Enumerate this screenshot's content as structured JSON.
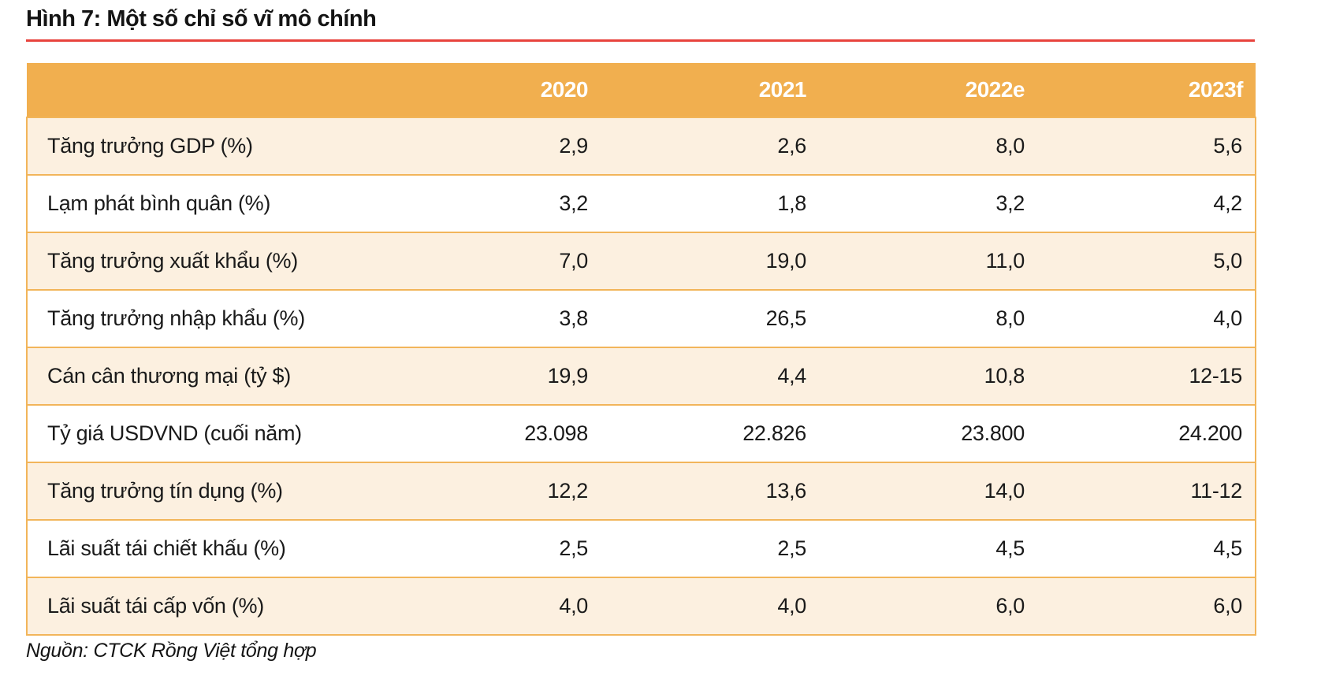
{
  "figure": {
    "title": "Hình 7: Một số chỉ số vĩ mô chính",
    "source_note": "Nguồn: CTCK Rồng Việt tổng hợp"
  },
  "colors": {
    "header_bg": "#F1AF4F",
    "row_stripe_bg": "#FCF0E0",
    "row_border": "#F2B55A",
    "title_rule_red": "#E8433D",
    "header_text": "#FFFFFF",
    "body_text": "#1A1A1A"
  },
  "table": {
    "columns": [
      "2020",
      "2021",
      "2022e",
      "2023f"
    ],
    "rows": [
      {
        "label": "Tăng trưởng GDP (%)",
        "values": [
          "2,9",
          "2,6",
          "8,0",
          "5,6"
        ]
      },
      {
        "label": "Lạm phát bình quân (%)",
        "values": [
          "3,2",
          "1,8",
          "3,2",
          "4,2"
        ]
      },
      {
        "label": "Tăng trưởng xuất khẩu (%)",
        "values": [
          "7,0",
          "19,0",
          "11,0",
          "5,0"
        ]
      },
      {
        "label": "Tăng trưởng nhập khẩu (%)",
        "values": [
          "3,8",
          "26,5",
          "8,0",
          "4,0"
        ]
      },
      {
        "label": "Cán cân thương mại (tỷ $)",
        "values": [
          "19,9",
          "4,4",
          "10,8",
          "12-15"
        ]
      },
      {
        "label": "Tỷ giá USDVND (cuối năm)",
        "values": [
          "23.098",
          "22.826",
          "23.800",
          "24.200"
        ]
      },
      {
        "label": "Tăng trưởng tín dụng (%)",
        "values": [
          "12,2",
          "13,6",
          "14,0",
          "11-12"
        ]
      },
      {
        "label": "Lãi suất tái chiết khấu (%)",
        "values": [
          "2,5",
          "2,5",
          "4,5",
          "4,5"
        ]
      },
      {
        "label": "Lãi suất tái cấp vốn (%)",
        "values": [
          "4,0",
          "4,0",
          "6,0",
          "6,0"
        ]
      }
    ]
  }
}
